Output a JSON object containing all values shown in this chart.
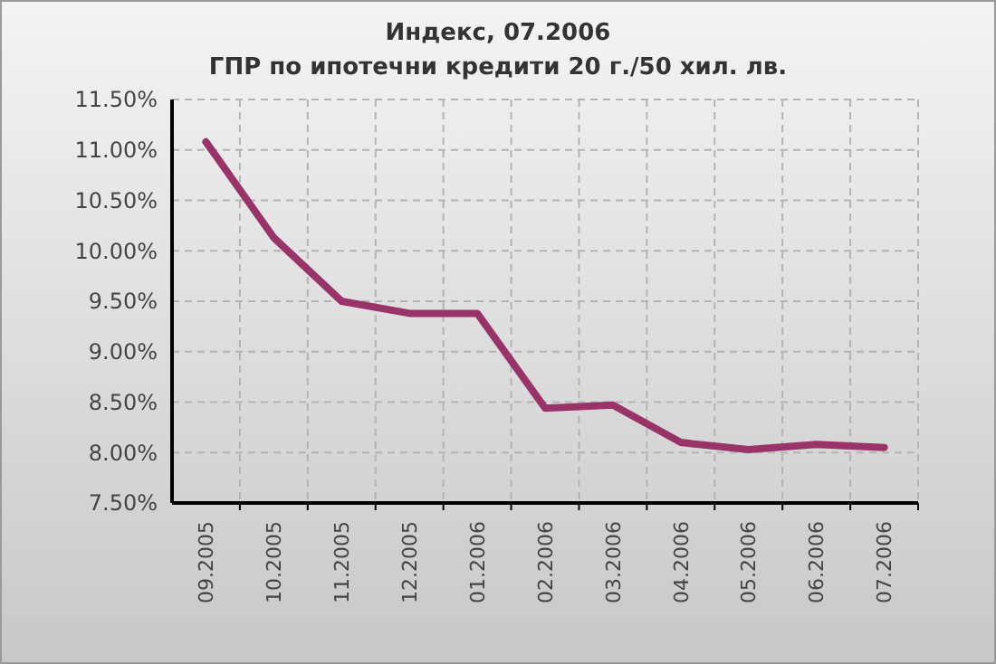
{
  "chart_data": {
    "type": "line",
    "title": "Индекс, 07.2006",
    "subtitle": "ГПР по ипотечни кредити 20 г./50 хил. лв.",
    "categories": [
      "09.2005",
      "10.2005",
      "11.2005",
      "12.2005",
      "01.2006",
      "02.2006",
      "03.2006",
      "04.2006",
      "05.2006",
      "06.2006",
      "07.2006"
    ],
    "series": [
      {
        "color": "#983468",
        "values": [
          11.08,
          10.13,
          9.5,
          9.38,
          9.38,
          8.44,
          8.47,
          8.1,
          8.03,
          8.08,
          8.05
        ]
      }
    ],
    "ylim": [
      7.5,
      11.5
    ],
    "yticks": [
      {
        "value": 7.5,
        "label": "7.50%"
      },
      {
        "value": 8,
        "label": "8.00%"
      },
      {
        "value": 8.5,
        "label": "8.50%"
      },
      {
        "value": 9,
        "label": "9.00%"
      },
      {
        "value": 9.5,
        "label": "9.50%"
      },
      {
        "value": 10,
        "label": "10.00%"
      },
      {
        "value": 10.5,
        "label": "10.50%"
      },
      {
        "value": 11,
        "label": "11.00%"
      },
      {
        "value": 11.5,
        "label": "11.50%"
      }
    ],
    "grid": true,
    "marker": "none",
    "line_style": "solid"
  }
}
